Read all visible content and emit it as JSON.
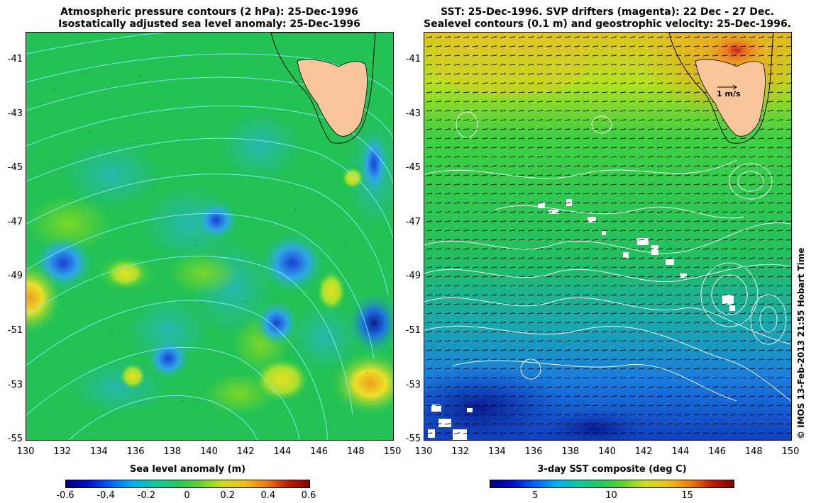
{
  "left_panel": {
    "title_line1": "Atmospheric pressure contours (2 hPa): 25-Dec-1996",
    "title_line2": "Isostatically adjusted sea level anomaly: 25-Dec-1996",
    "colorbar": {
      "label": "Sea level anomaly (m)",
      "ticks": [
        "-0.6",
        "-0.4",
        "-0.2",
        "0",
        "0.2",
        "0.4",
        "0.6"
      ]
    }
  },
  "right_panel": {
    "title_line1": "SST: 25-Dec-1996. SVP drifters (magenta): 22 Dec - 27 Dec.",
    "title_line2": "Sealevel contours (0.1 m) and geostrophic velocity: 25-Dec-1996.",
    "scale_arrow_label": "1 m/s",
    "colorbar": {
      "label": "3-day SST composite (deg C)",
      "ticks": [
        "5",
        "10",
        "15"
      ]
    }
  },
  "axes": {
    "lat_ticks": [
      "-41",
      "-43",
      "-45",
      "-47",
      "-49",
      "-51",
      "-53",
      "-55"
    ],
    "lon_ticks": [
      "130",
      "132",
      "134",
      "136",
      "138",
      "140",
      "142",
      "144",
      "146",
      "148",
      "150"
    ]
  },
  "credit": "© IMOS 13-Feb-2013 21:55 Hobart Time",
  "colors": {
    "land": "#f9c69b",
    "contour_left": "#7fe6f0",
    "contour_right": "#ffffff",
    "ocean_mid": "#1fc83c"
  }
}
